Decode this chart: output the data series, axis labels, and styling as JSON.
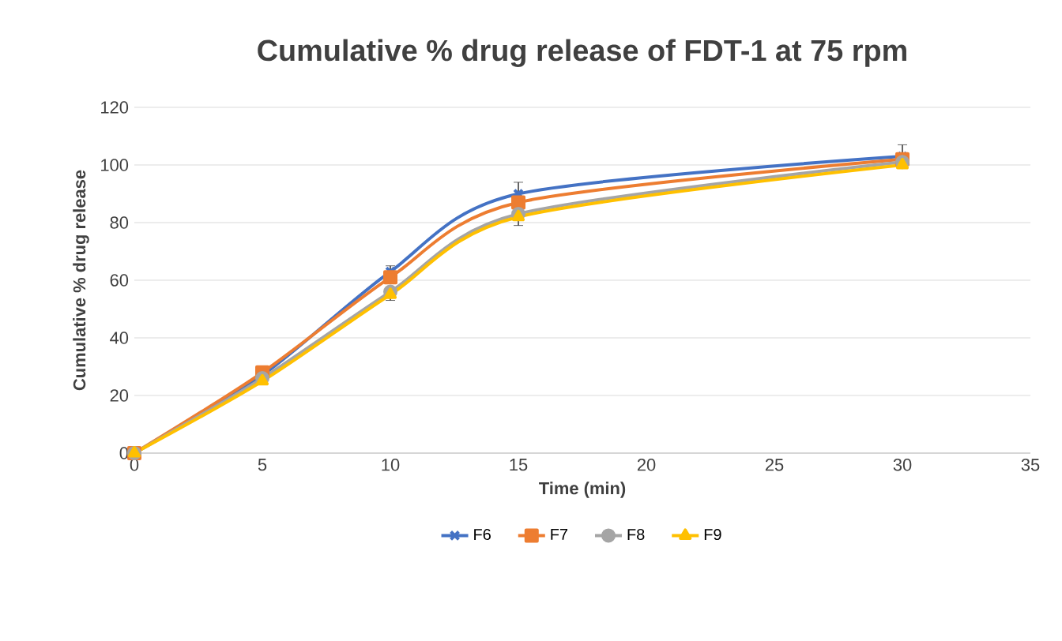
{
  "chart_data": {
    "type": "line",
    "title": "Cumulative % drug release of FDT-1 at 75 rpm",
    "xlabel": "Time (min)",
    "ylabel": "Cumulative % drug release",
    "x": [
      0,
      5,
      10,
      15,
      30
    ],
    "series": [
      {
        "name": "F6",
        "color": "#4472c4",
        "marker": "cross",
        "values": [
          0,
          27,
          63,
          90,
          103
        ],
        "errors": [
          null,
          null,
          2,
          4,
          4
        ]
      },
      {
        "name": "F7",
        "color": "#ed7d31",
        "marker": "square",
        "values": [
          0,
          28,
          61,
          87,
          102
        ]
      },
      {
        "name": "F8",
        "color": "#a5a5a5",
        "marker": "circle",
        "values": [
          0,
          26,
          56,
          83,
          101
        ]
      },
      {
        "name": "F9",
        "color": "#ffc000",
        "marker": "triangle",
        "values": [
          0,
          25,
          55,
          82,
          100
        ],
        "errors": [
          null,
          null,
          2,
          3,
          null
        ]
      }
    ],
    "xlim": [
      0,
      35
    ],
    "xticks": [
      0,
      5,
      10,
      15,
      20,
      25,
      30,
      35
    ],
    "ylim": [
      0,
      120
    ],
    "yticks": [
      0,
      20,
      40,
      60,
      80,
      100,
      120
    ],
    "grid": "y",
    "legend": "bottom",
    "line_style": "solid"
  }
}
